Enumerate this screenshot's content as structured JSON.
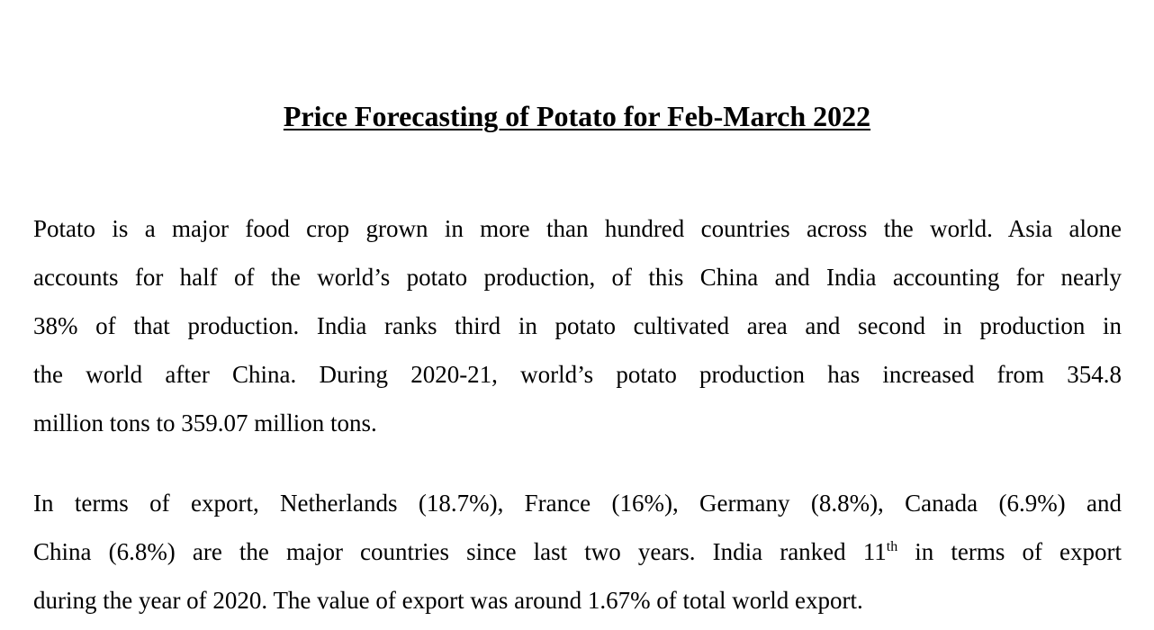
{
  "document": {
    "title": "Price Forecasting of Potato for Feb-March 2022",
    "paragraph1": {
      "lines": [
        "Potato is a major food crop grown in more than hundred countries across the world. Asia alone",
        "accounts for half of the world’s potato production, of this China and India accounting for nearly",
        "38% of that production. India ranks third in potato cultivated area and second in production in",
        "the world after China. During 2020-21, world’s potato production has increased from 354.8",
        "million tons to 359.07 million tons."
      ]
    },
    "paragraph2": {
      "line1": "In terms of export, Netherlands (18.7%), France (16%), Germany (8.8%), Canada (6.9%) and",
      "line2_before": "China (6.8%) are the major countries since last two years. India ranked 11",
      "line2_sup": "th",
      "line2_after": " in terms of export",
      "line3": "during the year of 2020. The value of export was around 1.67% of total world export."
    }
  }
}
